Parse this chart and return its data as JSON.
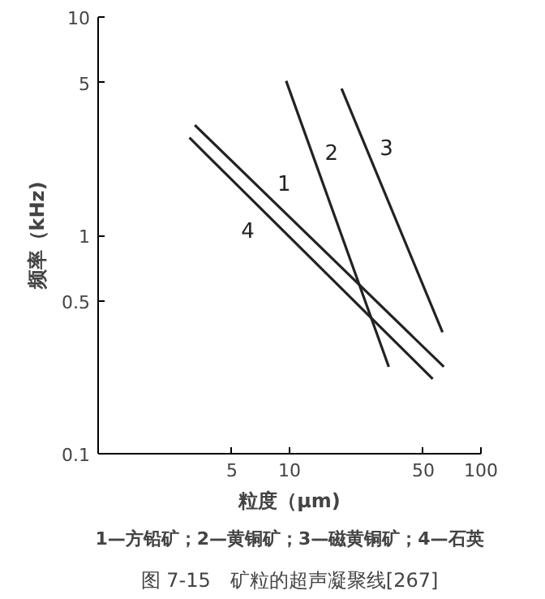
{
  "chart_data": {
    "type": "line",
    "title": "图 7-15　矿粒的超声凝聚线[267]",
    "xlabel": "粒度（μm)",
    "ylabel": "频率（kHz)",
    "log": "xy",
    "grid": false,
    "marker": "none",
    "line_style": "solid",
    "xlim": [
      1,
      100
    ],
    "ylim": [
      0.1,
      10
    ],
    "xticks": [
      5,
      10,
      50,
      100
    ],
    "yticks": [
      0.1,
      0.5,
      1,
      5,
      10
    ],
    "series": [
      {
        "name": "1",
        "color": "#222222",
        "x": [
          3.2,
          64
        ],
        "values": [
          3.2,
          0.25
        ]
      },
      {
        "name": "2",
        "color": "#222222",
        "x": [
          9.6,
          33
        ],
        "values": [
          5.1,
          0.25
        ]
      },
      {
        "name": "3",
        "color": "#222222",
        "x": [
          18.7,
          63
        ],
        "values": [
          4.7,
          0.36
        ]
      },
      {
        "name": "4",
        "color": "#222222",
        "x": [
          3.0,
          56
        ],
        "values": [
          2.8,
          0.22
        ]
      }
    ],
    "annotations": [
      "1—方铅矿；2—黄铜矿；3—磁黄铜矿；4—石英"
    ]
  }
}
